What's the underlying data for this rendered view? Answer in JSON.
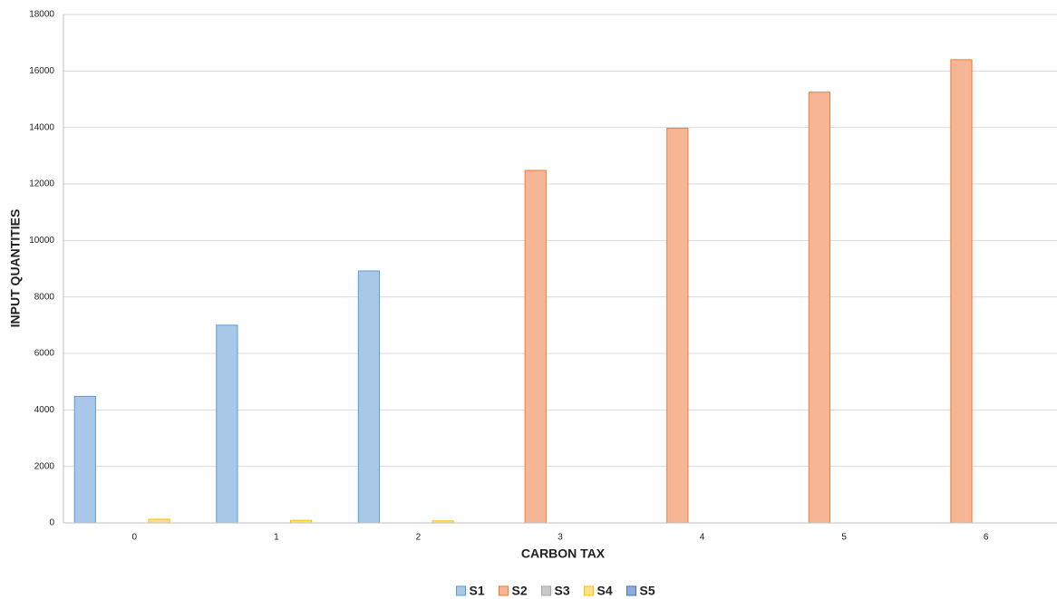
{
  "chart_data": {
    "type": "bar",
    "x_label": "CARBON TAX",
    "y_label": "INPUT QUANTITIES",
    "categories": [
      "0",
      "1",
      "2",
      "3",
      "4",
      "5",
      "6"
    ],
    "series": [
      {
        "name": "S1",
        "color": "#a9c8e8",
        "edgecolor": "#5b9bd5",
        "values": [
          4480,
          7000,
          8920,
          0,
          0,
          0,
          0
        ]
      },
      {
        "name": "S2",
        "color": "#f6b595",
        "edgecolor": "#ed7d31",
        "values": [
          0,
          0,
          0,
          12480,
          13970,
          15250,
          16400
        ]
      },
      {
        "name": "S3",
        "color": "#c9c9c9",
        "edgecolor": "#a5a5a5",
        "values": [
          0,
          0,
          0,
          0,
          0,
          0,
          0
        ]
      },
      {
        "name": "S4",
        "color": "#ffe08a",
        "edgecolor": "#ffc000",
        "values": [
          130,
          90,
          70,
          0,
          0,
          0,
          0
        ]
      },
      {
        "name": "S5",
        "color": "#8faadc",
        "edgecolor": "#4472c4",
        "values": [
          0,
          0,
          0,
          0,
          0,
          0,
          0
        ]
      }
    ],
    "ylim": [
      0,
      18000
    ],
    "yticks": [
      0,
      2000,
      4000,
      6000,
      8000,
      10000,
      12000,
      14000,
      16000,
      18000
    ],
    "grid": true,
    "legend": "bottom"
  }
}
